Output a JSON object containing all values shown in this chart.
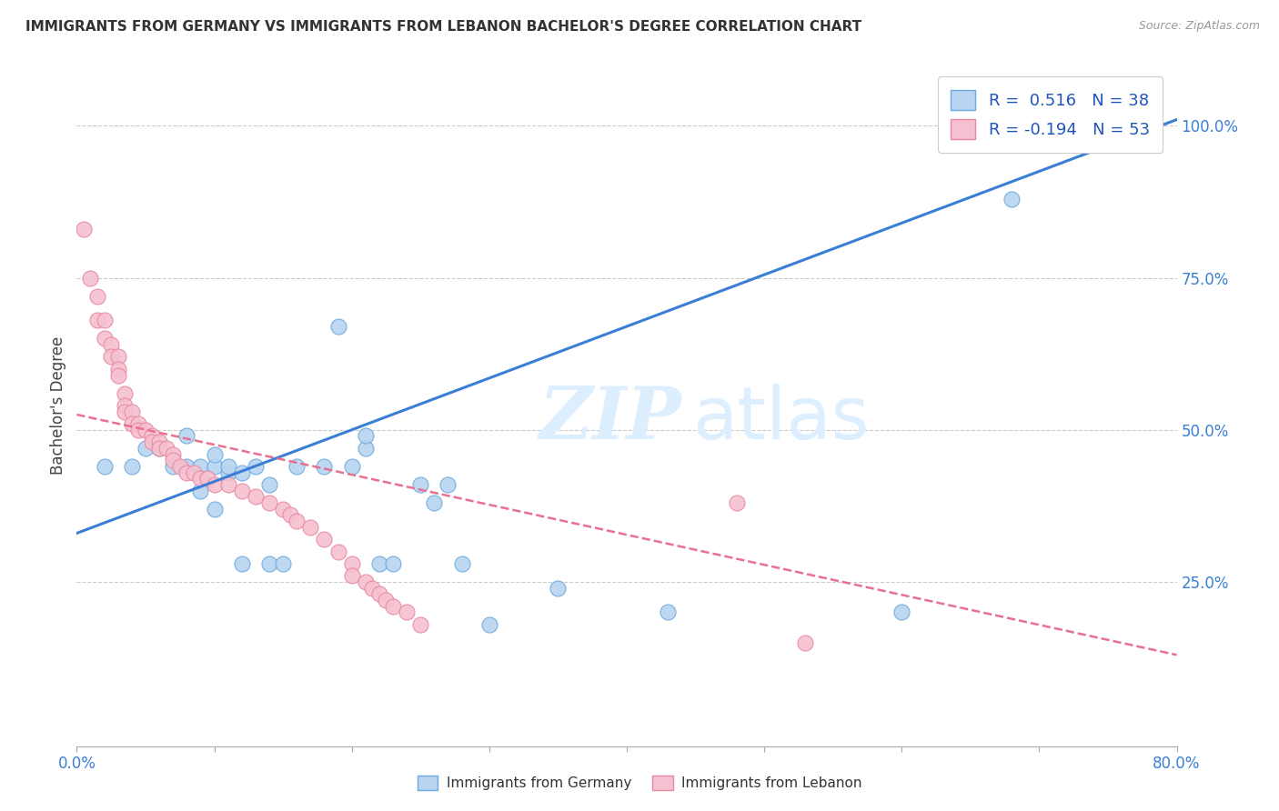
{
  "title": "IMMIGRANTS FROM GERMANY VS IMMIGRANTS FROM LEBANON BACHELOR'S DEGREE CORRELATION CHART",
  "source": "Source: ZipAtlas.com",
  "ylabel": "Bachelor's Degree",
  "ytick_labels": [
    "100.0%",
    "75.0%",
    "50.0%",
    "25.0%"
  ],
  "ytick_values": [
    1.0,
    0.75,
    0.5,
    0.25
  ],
  "xlim": [
    0.0,
    0.8
  ],
  "ylim": [
    -0.02,
    1.1
  ],
  "germany_R": 0.516,
  "germany_N": 38,
  "lebanon_R": -0.194,
  "lebanon_N": 53,
  "germany_color": "#b8d4f0",
  "lebanon_color": "#f5c0d0",
  "germany_edge_color": "#6aaae0",
  "lebanon_edge_color": "#e888a0",
  "germany_line_color": "#3a7fd5",
  "lebanon_line_color": "#e87090",
  "legend_text_color": "#2255bb",
  "watermark_color": "#ddeeff",
  "germany_scatter_x": [
    0.02,
    0.04,
    0.05,
    0.06,
    0.07,
    0.08,
    0.08,
    0.09,
    0.09,
    0.1,
    0.1,
    0.1,
    0.11,
    0.11,
    0.12,
    0.12,
    0.13,
    0.14,
    0.14,
    0.15,
    0.16,
    0.18,
    0.19,
    0.2,
    0.21,
    0.21,
    0.22,
    0.23,
    0.25,
    0.26,
    0.27,
    0.28,
    0.3,
    0.35,
    0.43,
    0.6,
    0.68,
    0.72
  ],
  "germany_scatter_y": [
    0.44,
    0.44,
    0.47,
    0.47,
    0.44,
    0.44,
    0.49,
    0.4,
    0.44,
    0.37,
    0.44,
    0.46,
    0.43,
    0.44,
    0.28,
    0.43,
    0.44,
    0.28,
    0.41,
    0.28,
    0.44,
    0.44,
    0.67,
    0.44,
    0.47,
    0.49,
    0.28,
    0.28,
    0.41,
    0.38,
    0.41,
    0.28,
    0.18,
    0.24,
    0.2,
    0.2,
    0.88,
    1.01
  ],
  "germany_trendline_x": [
    0.0,
    0.8
  ],
  "germany_trendline_y": [
    0.33,
    1.01
  ],
  "lebanon_scatter_x": [
    0.005,
    0.01,
    0.015,
    0.015,
    0.02,
    0.02,
    0.025,
    0.025,
    0.03,
    0.03,
    0.03,
    0.035,
    0.035,
    0.035,
    0.04,
    0.04,
    0.045,
    0.045,
    0.05,
    0.055,
    0.055,
    0.06,
    0.06,
    0.065,
    0.07,
    0.07,
    0.075,
    0.08,
    0.085,
    0.09,
    0.095,
    0.1,
    0.11,
    0.12,
    0.13,
    0.14,
    0.15,
    0.155,
    0.16,
    0.17,
    0.18,
    0.19,
    0.2,
    0.2,
    0.21,
    0.215,
    0.22,
    0.225,
    0.23,
    0.24,
    0.25,
    0.48,
    0.53
  ],
  "lebanon_scatter_y": [
    0.83,
    0.75,
    0.72,
    0.68,
    0.68,
    0.65,
    0.64,
    0.62,
    0.62,
    0.6,
    0.59,
    0.56,
    0.54,
    0.53,
    0.53,
    0.51,
    0.51,
    0.5,
    0.5,
    0.49,
    0.48,
    0.48,
    0.47,
    0.47,
    0.46,
    0.45,
    0.44,
    0.43,
    0.43,
    0.42,
    0.42,
    0.41,
    0.41,
    0.4,
    0.39,
    0.38,
    0.37,
    0.36,
    0.35,
    0.34,
    0.32,
    0.3,
    0.28,
    0.26,
    0.25,
    0.24,
    0.23,
    0.22,
    0.21,
    0.2,
    0.18,
    0.38,
    0.15
  ],
  "lebanon_trendline_x": [
    0.0,
    0.8
  ],
  "lebanon_trendline_y": [
    0.525,
    0.13
  ]
}
